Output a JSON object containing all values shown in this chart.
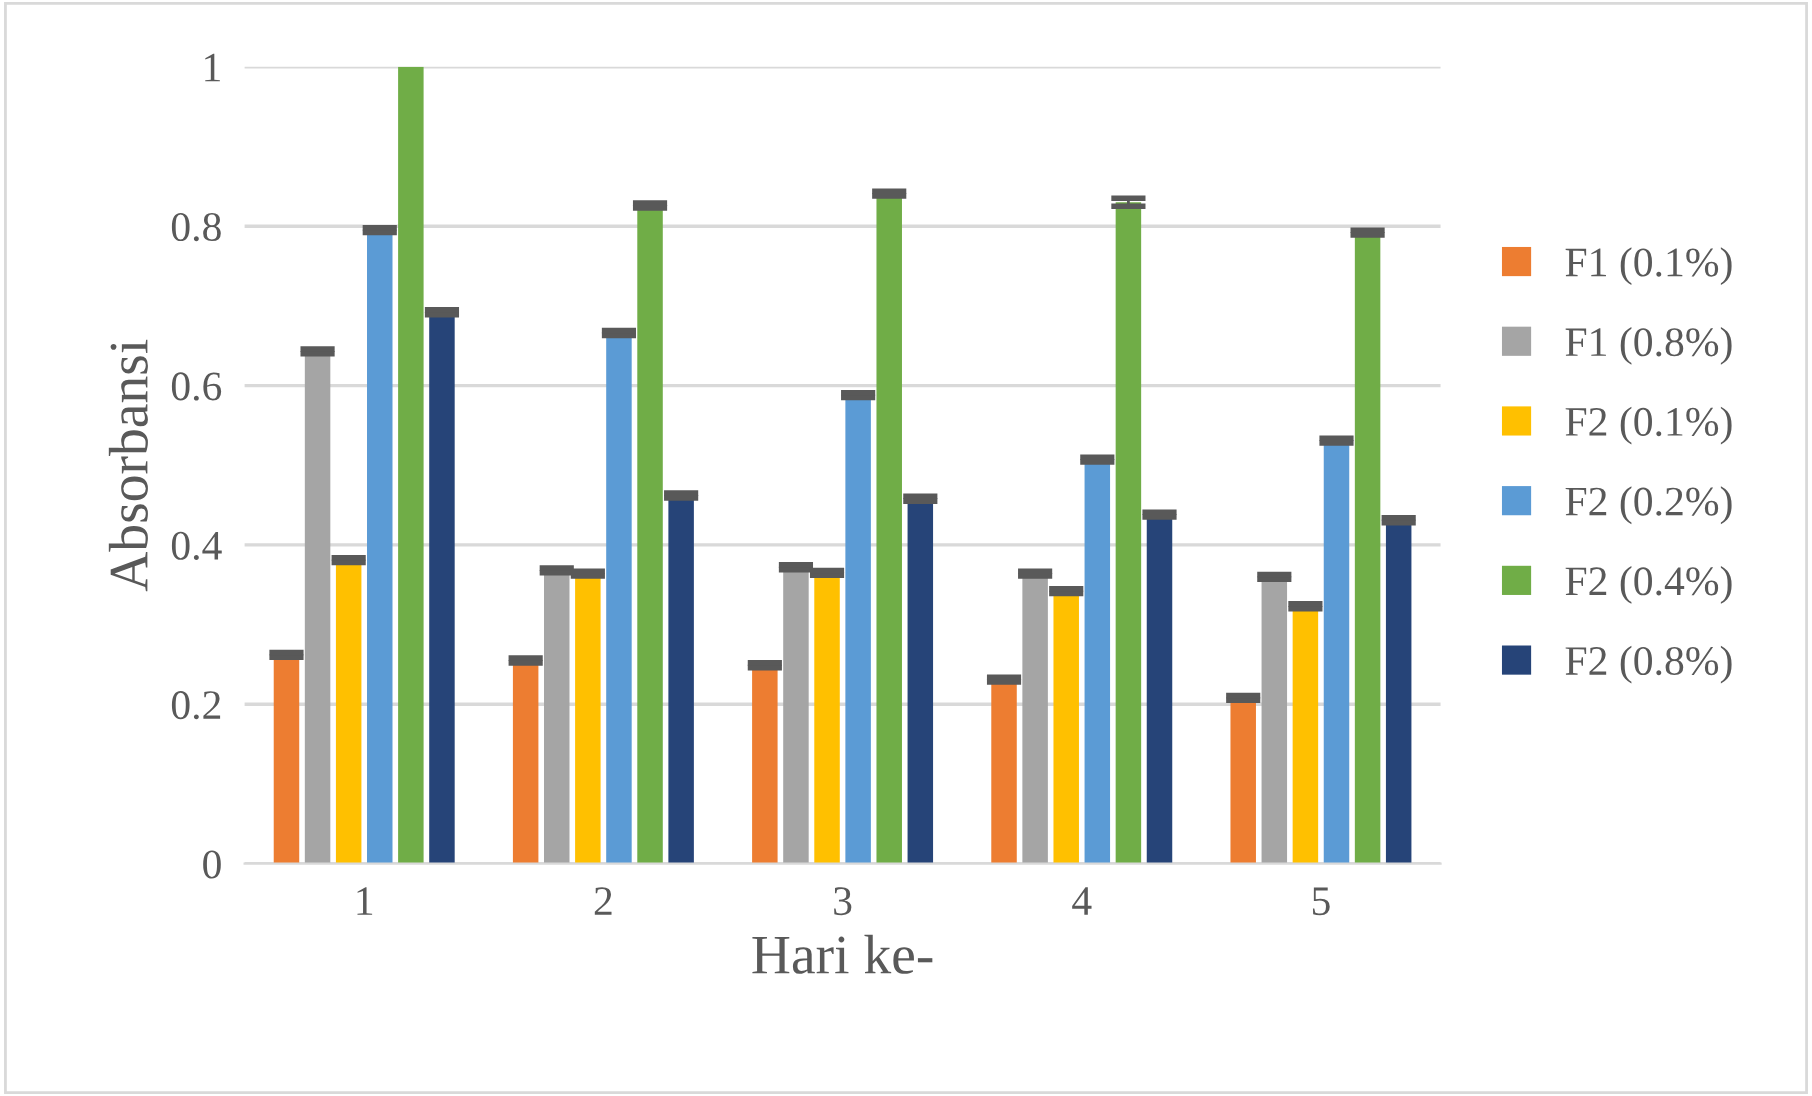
{
  "chart_data": {
    "type": "bar",
    "xlabel": "Hari ke-",
    "ylabel": "Absorbansi",
    "categories": [
      "1",
      "2",
      "3",
      "4",
      "5"
    ],
    "series": [
      {
        "name": "F1 (0.1%)",
        "color": "#ed7d31",
        "values": [
          0.262,
          0.255,
          0.249,
          0.231,
          0.208
        ],
        "errors": [
          0.003,
          0.003,
          0.003,
          0.003,
          0.003
        ]
      },
      {
        "name": "F1 (0.8%)",
        "color": "#a5a5a5",
        "values": [
          0.643,
          0.368,
          0.372,
          0.364,
          0.36
        ],
        "errors": [
          0.003,
          0.003,
          0.003,
          0.003,
          0.003
        ]
      },
      {
        "name": "F2 (0.1%)",
        "color": "#ffc000",
        "values": [
          0.381,
          0.364,
          0.365,
          0.342,
          0.323
        ],
        "errors": [
          0.003,
          0.003,
          0.003,
          0.003,
          0.003
        ]
      },
      {
        "name": "F2 (0.2%)",
        "color": "#5b9bd5",
        "values": [
          0.795,
          0.666,
          0.588,
          0.507,
          0.531
        ],
        "errors": [
          0.003,
          0.003,
          0.003,
          0.003,
          0.003
        ]
      },
      {
        "name": "F2 (0.4%)",
        "color": "#70ad47",
        "values": [
          1.0,
          0.826,
          0.841,
          0.83,
          0.792
        ],
        "errors": [
          null,
          0.003,
          0.003,
          0.005,
          0.003
        ]
      },
      {
        "name": "F2 (0.8%)",
        "color": "#264478",
        "values": [
          0.692,
          0.462,
          0.458,
          0.438,
          0.431
        ],
        "errors": [
          0.003,
          0.003,
          0.003,
          0.003,
          0.003
        ]
      }
    ],
    "ylim": [
      0,
      1
    ],
    "yticks": [
      0,
      0.2,
      0.4,
      0.6,
      0.8,
      1
    ],
    "grid": "y",
    "legend": "right"
  }
}
